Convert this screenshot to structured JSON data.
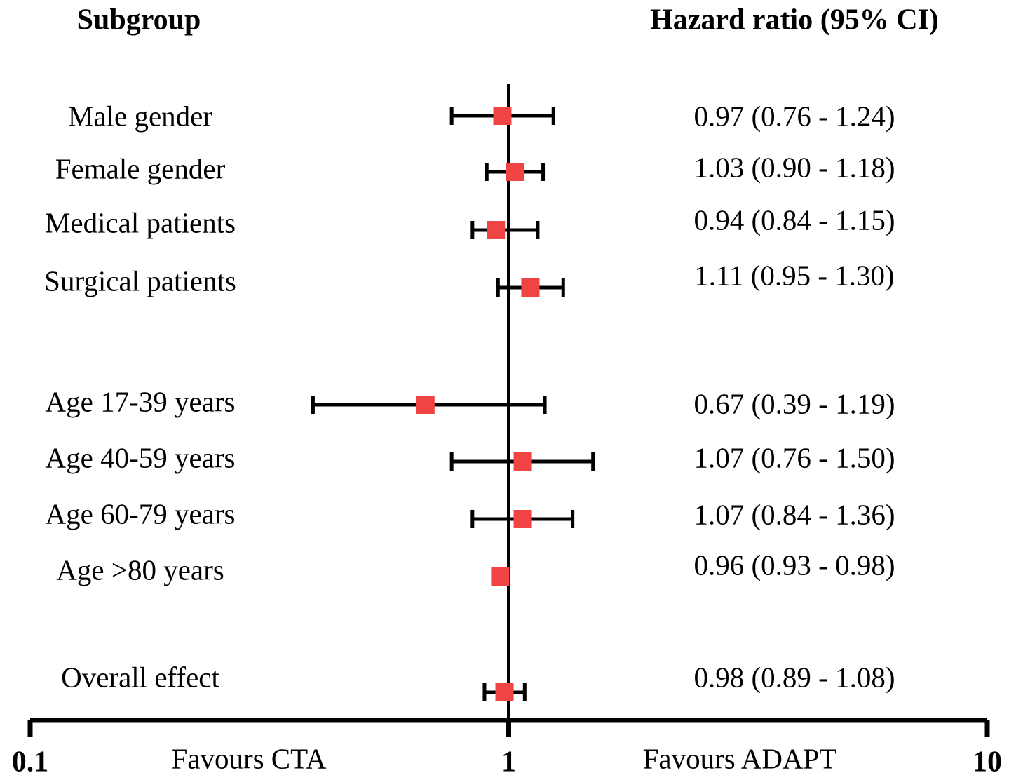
{
  "chart_data": {
    "type": "forest",
    "left_header": "Subgroup",
    "right_header": "Hazard ratio (95% CI)",
    "left_annotation": "Favours CTA",
    "right_annotation": "Favours ADAPT",
    "categories": [
      "Male gender",
      "Female gender",
      "Medical patients",
      "Surgical patients",
      "Age 17-39 years",
      "Age 40-59 years",
      "Age 60-79 years",
      "Age >80 years",
      "Overall effect"
    ],
    "values": [
      0.97,
      1.03,
      0.94,
      1.11,
      0.67,
      1.07,
      1.07,
      0.96,
      0.98
    ],
    "ci_low": [
      0.76,
      0.9,
      0.84,
      0.95,
      0.39,
      0.76,
      0.84,
      0.93,
      0.89
    ],
    "ci_high": [
      1.24,
      1.18,
      1.15,
      1.3,
      1.19,
      1.5,
      1.36,
      0.98,
      1.08
    ],
    "value_labels": [
      "0.97 (0.76 - 1.24)",
      "1.03 (0.90 - 1.18)",
      "0.94 (0.84 - 1.15)",
      "1.11 (0.95 - 1.30)",
      "0.67 (0.39 - 1.19)",
      "1.07 (0.76 - 1.50)",
      "1.07 (0.84 - 1.36)",
      "0.96 (0.93 - 0.98)",
      "0.98 (0.89 - 1.08)"
    ],
    "color": "#f04343",
    "xscale": "log",
    "xlim": [
      0.1,
      10
    ],
    "xticks": [
      0.1,
      1,
      10
    ],
    "reference_line": 1
  }
}
